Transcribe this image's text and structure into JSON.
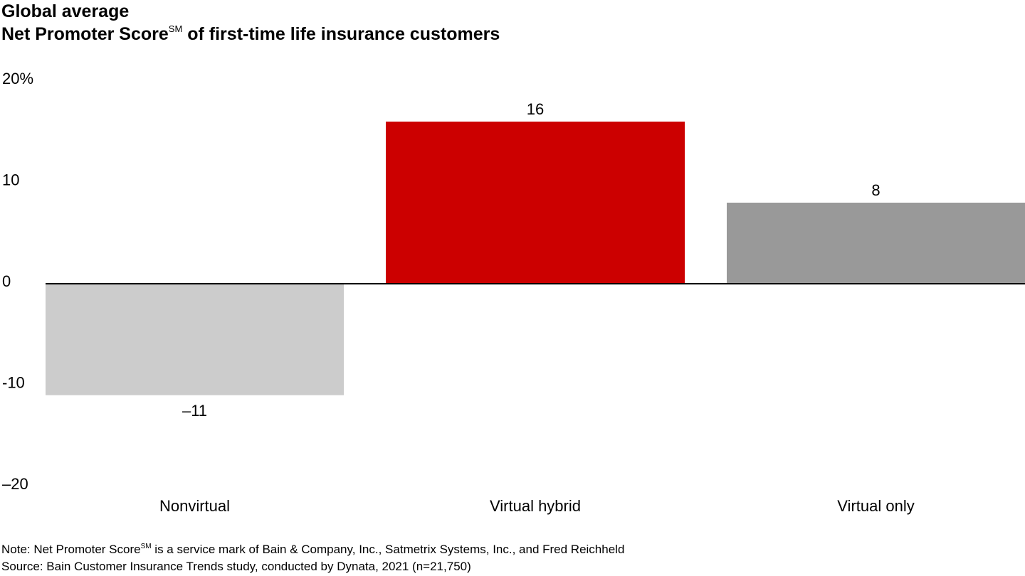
{
  "chart_data": {
    "type": "bar",
    "title": "Global average",
    "subtitle_main": "Net Promoter Score",
    "subtitle_mark": "SM",
    "subtitle_rest": " of first-time life insurance customers",
    "categories": [
      "Nonvirtual",
      "Virtual hybrid",
      "Virtual only"
    ],
    "values": [
      -11,
      16,
      8
    ],
    "value_labels": [
      "–11",
      "16",
      "8"
    ],
    "ylim": [
      -20,
      20
    ],
    "yticks": [
      20,
      10,
      0,
      -10,
      -20
    ],
    "ytick_labels": [
      "20%",
      "10",
      "0",
      "-10",
      "–20"
    ],
    "grid": false,
    "legend": "none",
    "colors": [
      "#cccccc",
      "#cc0000",
      "#999999"
    ],
    "zero_line_color": "#000000"
  },
  "footer": {
    "note_prefix": "Note: Net Promoter Score",
    "note_mark": "SM",
    "note_rest": " is a service mark of Bain & Company, Inc., Satmetrix Systems, Inc., and Fred Reichheld",
    "source": "Source: Bain Customer Insurance Trends study, conducted by Dynata, 2021 (n=21,750)"
  }
}
